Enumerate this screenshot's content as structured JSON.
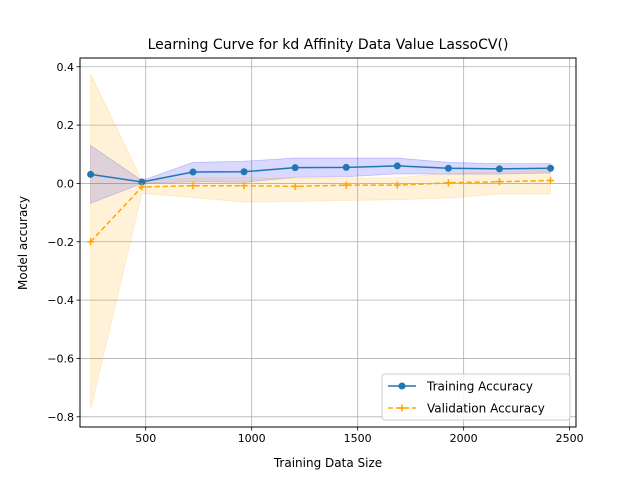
{
  "chart_data": {
    "type": "line",
    "title": "Learning Curve for kd Affinity Data Value LassoCV()",
    "xlabel": "Training Data Size",
    "ylabel": "Model accuracy",
    "xlim": [
      190,
      2530
    ],
    "ylim": [
      -0.835,
      0.43
    ],
    "x_ticks": [
      500,
      1000,
      1500,
      2000,
      2500
    ],
    "y_ticks": [
      -0.8,
      -0.6,
      -0.4,
      -0.2,
      0.0,
      0.2,
      0.4
    ],
    "x_tick_labels": [
      "500",
      "1000",
      "1500",
      "2000",
      "2500"
    ],
    "y_tick_labels": [
      "−0.8",
      "−0.6",
      "−0.4",
      "−0.2",
      "0.0",
      "0.2",
      "0.4"
    ],
    "grid": true,
    "legend_position": "bottom-right",
    "x": [
      240,
      482,
      723,
      964,
      1205,
      1446,
      1687,
      1928,
      2169,
      2410
    ],
    "series": [
      {
        "name": "Training Accuracy",
        "color": "#1f77b4",
        "band_color": "#0000ff",
        "marker": "circle",
        "linestyle": "solid",
        "values": [
          0.031,
          0.005,
          0.039,
          0.04,
          0.054,
          0.055,
          0.06,
          0.052,
          0.05,
          0.052
        ],
        "upper": [
          0.13,
          0.01,
          0.072,
          0.076,
          0.087,
          0.087,
          0.087,
          0.072,
          0.068,
          0.068
        ],
        "lower": [
          -0.068,
          0.0,
          0.006,
          0.004,
          0.021,
          0.023,
          0.033,
          0.032,
          0.032,
          0.036
        ]
      },
      {
        "name": "Validation Accuracy",
        "color": "#ffa500",
        "band_color": "#ffa500",
        "marker": "plus",
        "linestyle": "dashed",
        "values": [
          -0.2,
          -0.012,
          -0.008,
          -0.008,
          -0.01,
          -0.006,
          -0.006,
          0.002,
          0.006,
          0.01
        ],
        "upper": [
          0.375,
          0.01,
          0.018,
          0.02,
          0.017,
          0.018,
          0.02,
          0.035,
          0.04,
          0.045
        ],
        "lower": [
          -0.775,
          -0.034,
          -0.048,
          -0.064,
          -0.062,
          -0.058,
          -0.056,
          -0.05,
          -0.036,
          -0.036
        ]
      }
    ]
  }
}
